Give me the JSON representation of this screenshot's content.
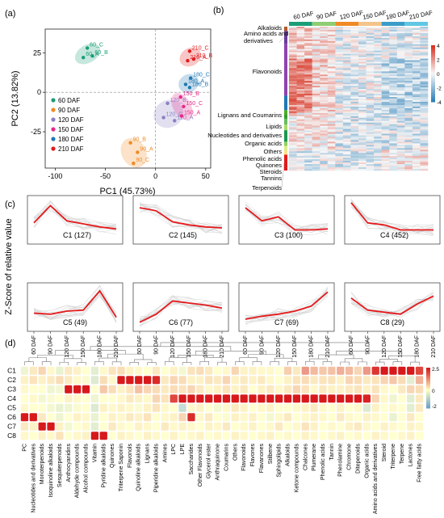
{
  "panel_labels": [
    "(a)",
    "(b)",
    "(c)",
    "(d)"
  ],
  "colors": {
    "60 DAF": "#1a9e77",
    "90 DAF": "#f08a24",
    "120 DAF": "#8b7fc4",
    "150 DAF": "#e7298a",
    "180 DAF": "#1f78b4",
    "210 DAF": "#e31a1c",
    "profile_line": "#e41a1c",
    "heat_high": "#d7302f",
    "heat_mid": "#ffffbf",
    "heat_low": "#4575b4"
  },
  "chart_data": [
    {
      "type": "scatter",
      "panel": "(a)",
      "xlabel": "PC1 (45.73%)",
      "ylabel": "PC2 (13.82%)",
      "xlim": [
        -110,
        55
      ],
      "ylim": [
        -48,
        40
      ],
      "xticks": [
        -100,
        -50,
        0,
        50
      ],
      "yticks": [
        -25,
        0,
        25
      ],
      "series": [
        {
          "name": "60 DAF",
          "points": [
            {
              "label": "60_C",
              "x": -68,
              "y": 28
            },
            {
              "label": "60_A",
              "x": -72,
              "y": 22
            },
            {
              "label": "60_B",
              "x": -63,
              "y": 23
            }
          ]
        },
        {
          "name": "90 DAF",
          "points": [
            {
              "label": "90_B",
              "x": -25,
              "y": -32
            },
            {
              "label": "90_A",
              "x": -18,
              "y": -38
            },
            {
              "label": "90_C",
              "x": -22,
              "y": -45
            }
          ]
        },
        {
          "name": "120 DAF",
          "points": [
            {
              "label": "120_B",
              "x": 12,
              "y": -7
            },
            {
              "label": "120_C",
              "x": 8,
              "y": -16
            },
            {
              "label": "120_A",
              "x": 19,
              "y": -18
            }
          ]
        },
        {
          "name": "150 DAF",
          "points": [
            {
              "label": "150_B",
              "x": 25,
              "y": -3
            },
            {
              "label": "150_C",
              "x": 28,
              "y": -9
            },
            {
              "label": "150_A",
              "x": 26,
              "y": -15
            }
          ]
        },
        {
          "name": "180 DAF",
          "points": [
            {
              "label": "180_A",
              "x": 30,
              "y": 5
            },
            {
              "label": "180_C",
              "x": 35,
              "y": 9
            },
            {
              "label": "180_B",
              "x": 34,
              "y": 3
            }
          ]
        },
        {
          "name": "210 DAF",
          "points": [
            {
              "label": "210_C",
              "x": 34,
              "y": 26
            },
            {
              "label": "210_B",
              "x": 38,
              "y": 21
            },
            {
              "label": "210_A",
              "x": 32,
              "y": 20
            }
          ]
        }
      ]
    },
    {
      "type": "heatmap",
      "panel": "(b)",
      "columns": [
        "60 DAF",
        "90 DAF",
        "120 DAF",
        "150 DAF",
        "180 DAF",
        "210 DAF"
      ],
      "row_groups": [
        "Alkaloids",
        "Amino acids and derivatives",
        "Flavonoids",
        "Lignans and Coumarins",
        "Lipids",
        "Nucleotides and derivatives",
        "Organic acids",
        "Others",
        "Phenolic acids",
        "Quinones",
        "Steroids",
        "Tannins",
        "Terpenoids"
      ],
      "scale": {
        "ticks": [
          4,
          2,
          0,
          -2,
          -4
        ]
      }
    },
    {
      "type": "line",
      "panel": "(c)",
      "ylabel": "Z-Score of relative value",
      "x": [
        "60 DAF",
        "90 DAF",
        "120 DAF",
        "150 DAF",
        "180 DAF",
        "210 DAF"
      ],
      "clusters": [
        {
          "name": "C1 (127)",
          "values": [
            -0.1,
            1.6,
            0.1,
            -0.2,
            -0.5,
            -0.7
          ]
        },
        {
          "name": "C2 (145)",
          "values": [
            1.4,
            1.1,
            0.0,
            -0.3,
            -0.5,
            -0.6
          ]
        },
        {
          "name": "C3 (100)",
          "values": [
            1.4,
            0.1,
            0.5,
            -0.8,
            -0.8,
            -0.7
          ]
        },
        {
          "name": "C4 (452)",
          "values": [
            1.9,
            -0.1,
            -0.3,
            -0.8,
            -0.8,
            -0.8
          ]
        },
        {
          "name": "C5 (49)",
          "values": [
            -0.4,
            -0.5,
            -0.2,
            -0.1,
            1.8,
            -0.8
          ]
        },
        {
          "name": "C6 (77)",
          "values": [
            -1.3,
            -0.5,
            0.8,
            0.6,
            0.4,
            0.1
          ]
        },
        {
          "name": "C7 (69)",
          "values": [
            -1.0,
            -0.7,
            -0.5,
            -0.2,
            0.3,
            1.7
          ]
        },
        {
          "name": "C8 (29)",
          "values": [
            1.1,
            -0.1,
            -0.3,
            -0.5,
            0.5,
            1.3
          ]
        }
      ]
    },
    {
      "type": "heatmap",
      "panel": "(d)",
      "rows": [
        "C1",
        "C2",
        "C3",
        "C4",
        "C5",
        "C6",
        "C7",
        "C8"
      ],
      "columns": [
        "PC",
        "Nucleotides and derivatives",
        "Monoterpenoids",
        "Isoquinoline alkaloids",
        "Sesquiterpenoids",
        "Anthocyanidins",
        "Aldehyde compounds",
        "Alcohol compounds",
        "Vitamin",
        "Pyridine alkaloids",
        "Quinones",
        "Triterpene Saponin",
        "Flavonols",
        "Quinoline alkaloids",
        "Lignans",
        "Piperidine alkaloids",
        "Amines",
        "LPC",
        "LPE",
        "Saccharides",
        "Other Flavonoids",
        "Glycerol ester",
        "Anthraquinone",
        "Coumarins",
        "Others",
        "Flavonoids",
        "Flavones",
        "Flavanones",
        "Stilbene",
        "Sphingolipids",
        "Alkaloids",
        "Ketone compounds",
        "Chalcones",
        "Plumerane",
        "Phenolic acids",
        "Tannin",
        "Phenolamine",
        "Chromone",
        "Ditepenoids",
        "Organic acids",
        "Amino acids and derivatives",
        "Steroid",
        "Triterpene",
        "Terpene",
        "Lactones",
        "Free fatty acids"
      ],
      "values": [
        [
          -0.3,
          0.3,
          0.6,
          0.1,
          -0.4,
          0.3,
          0.2,
          0.0,
          -0.5,
          0.1,
          0.4,
          0.5,
          0.2,
          0.1,
          0.0,
          0.3,
          0.0,
          0.2,
          -0.2,
          0.4,
          0.5,
          0.3,
          0.0,
          0.1,
          0.6,
          0.2,
          0.2,
          0.1,
          0.1,
          0.0,
          0.7,
          0.3,
          1.5,
          1.0,
          0.8,
          0.9,
          1.2,
          1.0,
          0.6,
          1.5,
          2.2,
          2.5,
          2.5,
          2.5,
          2.5,
          2.0
        ],
        [
          0.2,
          0.4,
          0.2,
          0.3,
          0.5,
          0.3,
          0.1,
          -0.1,
          -0.6,
          0.5,
          0.1,
          2.5,
          2.5,
          2.5,
          2.5,
          2.3,
          0.3,
          0.6,
          0.5,
          0.2,
          0.2,
          0.4,
          0.3,
          0.6,
          0.2,
          0.3,
          0.2,
          0.3,
          0.1,
          0.0,
          0.2,
          0.4,
          0.5,
          0.3,
          0.4,
          0.4,
          0.2,
          0.6,
          0.5,
          0.3,
          0.4,
          0.6,
          0.8,
          0.5,
          -0.5,
          1.1
        ],
        [
          0.1,
          0.0,
          0.0,
          -0.3,
          -0.2,
          2.5,
          2.5,
          2.5,
          0.0,
          0.8,
          0.5,
          0.2,
          0.4,
          0.9,
          0.6,
          0.5,
          0.3,
          0.5,
          0.4,
          0.6,
          0.3,
          0.1,
          0.2,
          0.4,
          0.2,
          0.3,
          0.0,
          0.2,
          0.3,
          0.1,
          0.3,
          0.6,
          0.4,
          0.1,
          0.3,
          0.2,
          0.2,
          0.3,
          0.4,
          0.2,
          0.4,
          0.1,
          0.0,
          0.3,
          0.6,
          0.5
        ],
        [
          0.0,
          0.1,
          -0.2,
          -0.1,
          0.0,
          0.2,
          0.1,
          0.0,
          -0.3,
          0.0,
          0.0,
          0.1,
          0.3,
          0.2,
          0.1,
          0.6,
          0.4,
          2.0,
          2.5,
          2.5,
          2.5,
          2.5,
          2.5,
          2.5,
          2.5,
          2.5,
          2.5,
          2.5,
          2.5,
          2.5,
          2.5,
          2.5,
          2.5,
          2.5,
          2.5,
          2.5,
          2.5,
          2.5,
          2.5,
          2.4,
          0.6,
          0.1,
          -0.3,
          0.0,
          -0.5,
          0.3
        ],
        [
          0.1,
          0.0,
          0.0,
          -0.2,
          -0.4,
          -0.3,
          -0.1,
          0.0,
          -0.6,
          0.2,
          0.1,
          0.2,
          0.1,
          -0.1,
          0.2,
          0.4,
          0.1,
          0.0,
          -1.0,
          0.1,
          0.2,
          0.0,
          -0.2,
          0.1,
          0.3,
          0.2,
          0.0,
          0.1,
          0.2,
          0.0,
          0.0,
          0.1,
          0.2,
          0.3,
          0.1,
          0.0,
          0.2,
          0.0,
          0.1,
          -0.6,
          0.2,
          0.0,
          0.1,
          0.0,
          -0.5,
          0.3
        ],
        [
          2.5,
          2.5,
          0.3,
          0.0,
          -0.3,
          0.0,
          0.2,
          0.1,
          -0.4,
          0.0,
          0.2,
          0.1,
          0.3,
          0.2,
          0.4,
          0.0,
          0.1,
          0.2,
          0.6,
          2.3,
          0.1,
          0.3,
          0.0,
          -0.1,
          0.2,
          0.1,
          0.2,
          0.0,
          -0.2,
          0.1,
          0.3,
          0.0,
          0.1,
          0.2,
          0.1,
          0.0,
          0.3,
          0.1,
          0.0,
          0.2,
          0.1,
          0.0,
          -0.4,
          0.0,
          0.3,
          0.0
        ],
        [
          0.3,
          0.2,
          2.5,
          2.5,
          0.2,
          -0.2,
          0.0,
          0.1,
          -0.5,
          0.0,
          0.3,
          0.1,
          0.0,
          0.2,
          0.1,
          0.0,
          0.3,
          0.1,
          0.2,
          0.1,
          0.0,
          0.2,
          0.1,
          0.3,
          0.0,
          0.1,
          0.2,
          0.0,
          0.1,
          0.3,
          0.0,
          0.1,
          0.4,
          0.2,
          0.0,
          0.1,
          0.0,
          0.2,
          0.3,
          0.1,
          0.0,
          0.2,
          0.1,
          0.0,
          0.2,
          0.1
        ],
        [
          0.1,
          0.0,
          0.2,
          0.1,
          0.4,
          0.0,
          0.1,
          0.2,
          2.5,
          2.5,
          0.0,
          0.2,
          0.1,
          0.0,
          0.2,
          0.1,
          0.0,
          0.2,
          0.0,
          0.1,
          0.2,
          0.0,
          0.1,
          0.0,
          0.2,
          0.1,
          0.0,
          0.1,
          0.2,
          0.0,
          0.1,
          0.0,
          0.2,
          0.1,
          0.0,
          0.1,
          0.2,
          0.0,
          0.1,
          0.0,
          0.2,
          0.1,
          0.0,
          0.1,
          0.2,
          0.0
        ]
      ],
      "scale": {
        "ticks": [
          2.5,
          0,
          -2.0
        ],
        "min": -2.0,
        "max": 2.5
      }
    }
  ]
}
